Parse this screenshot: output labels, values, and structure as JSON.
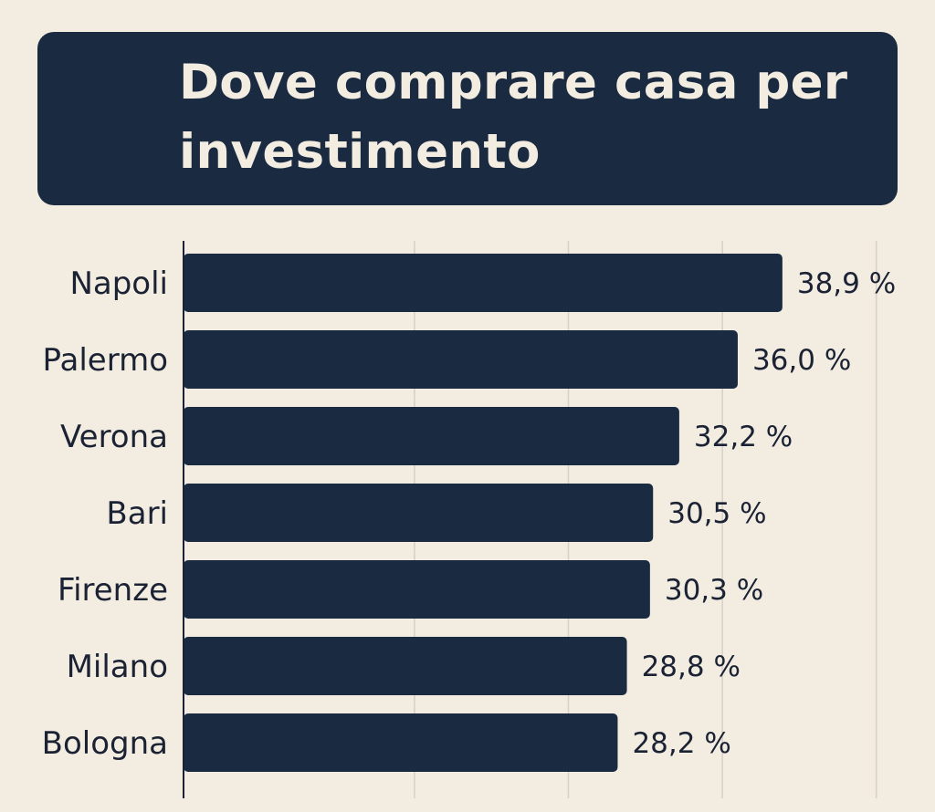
{
  "title": "Dove comprare casa per investimento",
  "colors": {
    "background": "#f3ece1",
    "bar": "#1a2a40",
    "title_bg": "#1a2a40",
    "title_text": "#f3ece1",
    "grid": "#d6d0c6",
    "axis": "#1a2233",
    "text": "#1a2233"
  },
  "chart_data": {
    "type": "bar",
    "orientation": "horizontal",
    "title": "Dove comprare casa per investimento",
    "xlabel": "",
    "ylabel": "",
    "grid": true,
    "xlim": [
      0,
      45
    ],
    "gridlines": [
      0,
      15,
      25,
      35,
      45
    ],
    "categories": [
      "Napoli",
      "Palermo",
      "Verona",
      "Bari",
      "Firenze",
      "Milano",
      "Bologna"
    ],
    "values": [
      38.9,
      36.0,
      32.2,
      30.5,
      30.3,
      28.8,
      28.2
    ],
    "value_labels": [
      "38,9 %",
      "36,0 %",
      "32,2 %",
      "30,5 %",
      "30,3 %",
      "28,8 %",
      "28,2 %"
    ]
  }
}
